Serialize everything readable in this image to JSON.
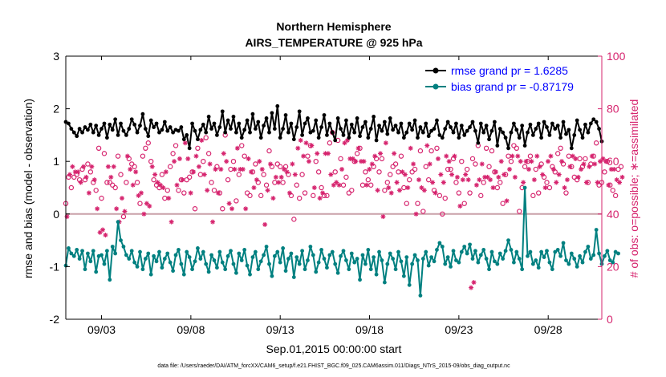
{
  "chart_data": {
    "type": "line",
    "title": "Northern Hemisphere",
    "subtitle": "AIRS_TEMPERATURE @ 925 hPa",
    "xlabel": "Sep.01,2015 00:00:00 start",
    "ylabel": "rmse and bias (model - observation)",
    "y2label": "# of obs: o=possible; ∗=assimilated",
    "xlim": [
      1,
      31
    ],
    "ylim": [
      -2,
      3
    ],
    "y2lim": [
      0,
      100
    ],
    "x_ticks": [
      3,
      8,
      13,
      18,
      23,
      28
    ],
    "x_tick_labels": [
      "09/03",
      "09/08",
      "09/13",
      "09/18",
      "09/23",
      "09/28"
    ],
    "y_ticks": [
      -2,
      -1,
      0,
      1,
      2,
      3
    ],
    "y2_ticks": [
      0,
      20,
      40,
      60,
      80,
      100
    ],
    "zero_line": 0,
    "legend": [
      {
        "label": "rmse grand pr = 1.6285",
        "color": "#000000"
      },
      {
        "label": "bias grand pr = -0.87179",
        "color": "#008080"
      }
    ],
    "rmse": [
      1.75,
      1.72,
      1.62,
      1.55,
      1.48,
      1.62,
      1.55,
      1.65,
      1.6,
      1.7,
      1.55,
      1.68,
      1.5,
      1.62,
      1.72,
      1.45,
      1.7,
      1.6,
      1.8,
      1.5,
      1.72,
      1.58,
      1.5,
      1.62,
      1.8,
      1.7,
      1.55,
      1.68,
      1.9,
      1.62,
      1.48,
      1.78,
      1.65,
      1.72,
      1.55,
      1.6,
      1.75,
      1.58,
      1.65,
      1.55,
      1.6,
      1.58,
      1.65,
      1.42,
      1.5,
      1.25,
      1.72,
      1.58,
      1.42,
      1.6,
      1.7,
      1.55,
      1.85,
      1.62,
      1.72,
      1.5,
      1.65,
      1.95,
      1.55,
      1.78,
      1.62,
      1.85,
      1.55,
      1.72,
      1.45,
      1.6,
      1.78,
      1.55,
      1.9,
      1.62,
      1.75,
      1.45,
      1.68,
      1.82,
      1.55,
      1.92,
      1.62,
      2.05,
      1.45,
      1.62,
      1.88,
      1.55,
      1.72,
      1.42,
      1.65,
      1.95,
      1.5,
      1.72,
      1.82,
      1.55,
      1.58,
      1.78,
      1.45,
      1.65,
      1.88,
      1.5,
      1.72,
      1.55,
      1.4,
      1.82,
      1.62,
      1.5,
      1.78,
      1.45,
      1.7,
      1.55,
      1.82,
      1.48,
      1.65,
      1.75,
      1.45,
      1.62,
      1.85,
      1.4,
      1.68,
      1.58,
      1.75,
      1.52,
      1.82,
      1.6,
      1.68,
      1.55,
      1.72,
      1.45,
      1.55,
      1.72,
      1.6,
      1.78,
      1.45,
      1.65,
      1.55,
      1.72,
      1.48,
      1.58,
      1.62,
      1.78,
      1.5,
      1.45,
      1.62,
      1.75,
      1.65,
      1.55,
      1.72,
      1.45,
      1.68,
      1.5,
      1.58,
      1.65,
      1.75,
      1.58,
      1.35,
      1.72,
      1.55,
      1.68,
      1.42,
      1.58,
      1.75,
      1.3,
      1.62,
      1.55,
      1.45,
      1.25,
      1.55,
      1.72,
      1.6,
      1.45,
      1.68,
      1.3,
      1.55,
      1.7,
      1.5,
      1.62,
      1.72,
      1.45,
      1.75,
      1.65,
      1.5,
      1.72,
      1.62,
      1.68,
      1.45,
      1.75,
      1.52,
      1.6,
      1.25,
      1.5,
      1.78,
      1.6,
      1.45,
      1.7,
      1.55,
      1.72,
      1.8,
      1.75,
      1.62,
      1.38
    ],
    "bias": [
      -0.98,
      -0.65,
      -0.75,
      -0.8,
      -0.68,
      -0.85,
      -0.7,
      -1.05,
      -0.75,
      -0.9,
      -0.7,
      -1.1,
      -0.8,
      -0.78,
      -0.95,
      -0.7,
      -1.25,
      -0.62,
      -0.75,
      -0.15,
      -0.5,
      -0.62,
      -0.78,
      -0.85,
      -0.7,
      -0.92,
      -1.0,
      -0.72,
      -1.05,
      -0.85,
      -0.75,
      -1.15,
      -0.8,
      -0.9,
      -0.72,
      -1.02,
      -0.85,
      -0.75,
      -0.92,
      -1.08,
      -0.78,
      -0.68,
      -0.95,
      -1.15,
      -0.72,
      -0.82,
      -1.05,
      -0.9,
      -0.65,
      -0.85,
      -0.72,
      -0.95,
      -1.1,
      -0.78,
      -0.88,
      -1.02,
      -0.72,
      -0.92,
      -1.05,
      -0.8,
      -0.7,
      -0.95,
      -1.12,
      -0.75,
      -0.88,
      -0.68,
      -0.98,
      -1.15,
      -0.82,
      -0.72,
      -1.05,
      -0.9,
      -0.78,
      -0.62,
      -0.95,
      -1.18,
      -0.8,
      -0.72,
      -0.92,
      -0.65,
      -1.08,
      -0.85,
      -0.75,
      -1.2,
      -0.82,
      -0.95,
      -0.7,
      -1.05,
      -0.88,
      -0.62,
      -0.78,
      -1.1,
      -0.92,
      -0.68,
      -0.85,
      -1.02,
      -0.78,
      -0.72,
      -0.95,
      -1.12,
      -0.8,
      -0.7,
      -0.88,
      -1.05,
      -0.75,
      -0.92,
      -0.85,
      -1.25,
      -0.78,
      -0.95,
      -0.68,
      -1.05,
      -0.82,
      -1.15,
      -0.72,
      -0.88,
      -1.3,
      -0.95,
      -0.75,
      -0.85,
      -1.05,
      -0.72,
      -0.9,
      -1.18,
      -0.82,
      -1.35,
      -0.95,
      -0.78,
      -0.88,
      -1.55,
      -0.85,
      -0.72,
      -0.98,
      -0.82,
      -0.9,
      -0.68,
      -0.55,
      -0.62,
      -0.95,
      -0.82,
      -1.0,
      -0.7,
      -0.88,
      -0.92,
      -0.72,
      -0.62,
      -0.75,
      -0.58,
      -0.85,
      -0.7,
      -0.92,
      -0.78,
      -0.68,
      -0.85,
      -1.05,
      -0.72,
      -0.9,
      -0.95,
      -0.75,
      -0.85,
      -0.7,
      -0.5,
      -0.68,
      -0.92,
      -0.72,
      -0.85,
      -1.05,
      0.5,
      -0.8,
      -0.72,
      -0.95,
      -0.88,
      -1.02,
      -0.72,
      -0.82,
      -0.7,
      -0.92,
      -1.05,
      -0.72,
      -0.68,
      -0.8,
      -0.55,
      -0.88,
      -0.95,
      -0.75,
      -0.85,
      -1.0,
      -0.8,
      -0.92,
      -0.72,
      -0.62,
      -0.85,
      -0.78,
      -0.3,
      -0.75,
      -0.95,
      -0.8,
      -0.7,
      -0.88,
      -0.92,
      -0.72,
      -0.75
    ],
    "obs_possible": [
      44,
      54,
      50,
      54,
      55,
      53,
      57,
      53,
      59,
      56,
      52,
      49,
      65,
      46,
      63,
      52,
      52,
      51,
      50,
      62,
      55,
      39,
      52,
      61,
      59,
      58,
      52,
      44,
      62,
      65,
      67,
      60,
      53,
      51,
      50,
      55,
      46,
      49,
      58,
      63,
      66,
      49,
      53,
      48,
      53,
      54,
      56,
      42,
      65,
      55,
      60,
      69,
      63,
      52,
      49,
      58,
      48,
      42,
      70,
      53,
      57,
      60,
      45,
      55,
      66,
      62,
      48,
      47,
      56,
      59,
      52,
      47,
      55,
      51,
      64,
      58,
      52,
      59,
      58,
      52,
      58,
      55,
      47,
      38,
      51,
      46,
      55,
      48,
      62,
      66,
      47,
      60,
      56,
      50,
      47,
      47,
      67,
      71,
      56,
      68,
      61,
      51,
      54,
      48,
      49,
      60,
      63,
      65,
      51,
      56,
      53,
      51,
      58,
      61,
      56,
      61,
      49,
      52,
      55,
      58,
      59,
      56,
      62,
      50,
      44,
      53,
      56,
      57,
      44,
      64,
      41,
      58,
      53,
      64,
      49,
      65,
      47,
      40,
      46,
      57,
      57,
      61,
      52,
      48,
      60,
      44,
      57,
      48,
      61,
      59,
      66,
      47,
      52,
      65,
      58,
      64,
      56,
      50,
      52,
      44,
      55,
      62,
      60,
      66,
      65,
      41,
      50,
      58,
      60,
      62,
      47,
      57,
      48,
      59,
      54,
      52,
      50,
      58,
      56,
      63,
      65,
      59,
      48,
      62,
      58,
      54,
      53,
      61,
      58,
      61,
      52,
      59,
      62,
      67,
      51,
      52,
      56,
      60,
      51,
      49,
      47,
      57,
      58
    ],
    "obs_assimilated": [
      39,
      55,
      58,
      56,
      56,
      52,
      58,
      54,
      48,
      58,
      53,
      42,
      33,
      34,
      32,
      58,
      54,
      58,
      42,
      37,
      46,
      41,
      62,
      57,
      51,
      56,
      47,
      48,
      40,
      44,
      43,
      58,
      55,
      52,
      51,
      50,
      56,
      46,
      37,
      60,
      51,
      61,
      53,
      67,
      61,
      48,
      56,
      62,
      58,
      68,
      55,
      49,
      59,
      37,
      57,
      48,
      57,
      63,
      60,
      44,
      42,
      57,
      65,
      57,
      57,
      42,
      61,
      56,
      50,
      53,
      60,
      57,
      36,
      49,
      59,
      46,
      54,
      52,
      54,
      57,
      56,
      48,
      59,
      55,
      65,
      68,
      62,
      67,
      60,
      66,
      50,
      63,
      46,
      48,
      63,
      63,
      55,
      51,
      52,
      51,
      57,
      67,
      68,
      61,
      61,
      60,
      65,
      60,
      60,
      51,
      57,
      59,
      62,
      49,
      63,
      39,
      67,
      50,
      48,
      63,
      52,
      49,
      56,
      55,
      50,
      65,
      59,
      40,
      53,
      50,
      49,
      66,
      59,
      52,
      48,
      61,
      55,
      52,
      62,
      60,
      55,
      62,
      54,
      43,
      53,
      55,
      53,
      12,
      14,
      51,
      53,
      59,
      54,
      54,
      53,
      50,
      56,
      54,
      60,
      55,
      45,
      57,
      62,
      54,
      62,
      60,
      52,
      60,
      57,
      60,
      53,
      62,
      58,
      55,
      50,
      60,
      62,
      57,
      52,
      55,
      60,
      50,
      53,
      58,
      62,
      61,
      54,
      57,
      59,
      52,
      58,
      62,
      59,
      52,
      60,
      61,
      60,
      51,
      57,
      57,
      53,
      52,
      54
    ]
  },
  "footer": {
    "data_file": "data file: /Users/raeder/DAI/ATM_forcXX/CAM6_setup/f.e21.FHIST_BGC.f09_025.CAM6assim.011/Diags_NTrS_2015-09/obs_diag_output.nc"
  },
  "colors": {
    "rmse": "#000000",
    "bias": "#008080",
    "obs": "#d6246e",
    "zero_line": "#c8a0a8"
  }
}
